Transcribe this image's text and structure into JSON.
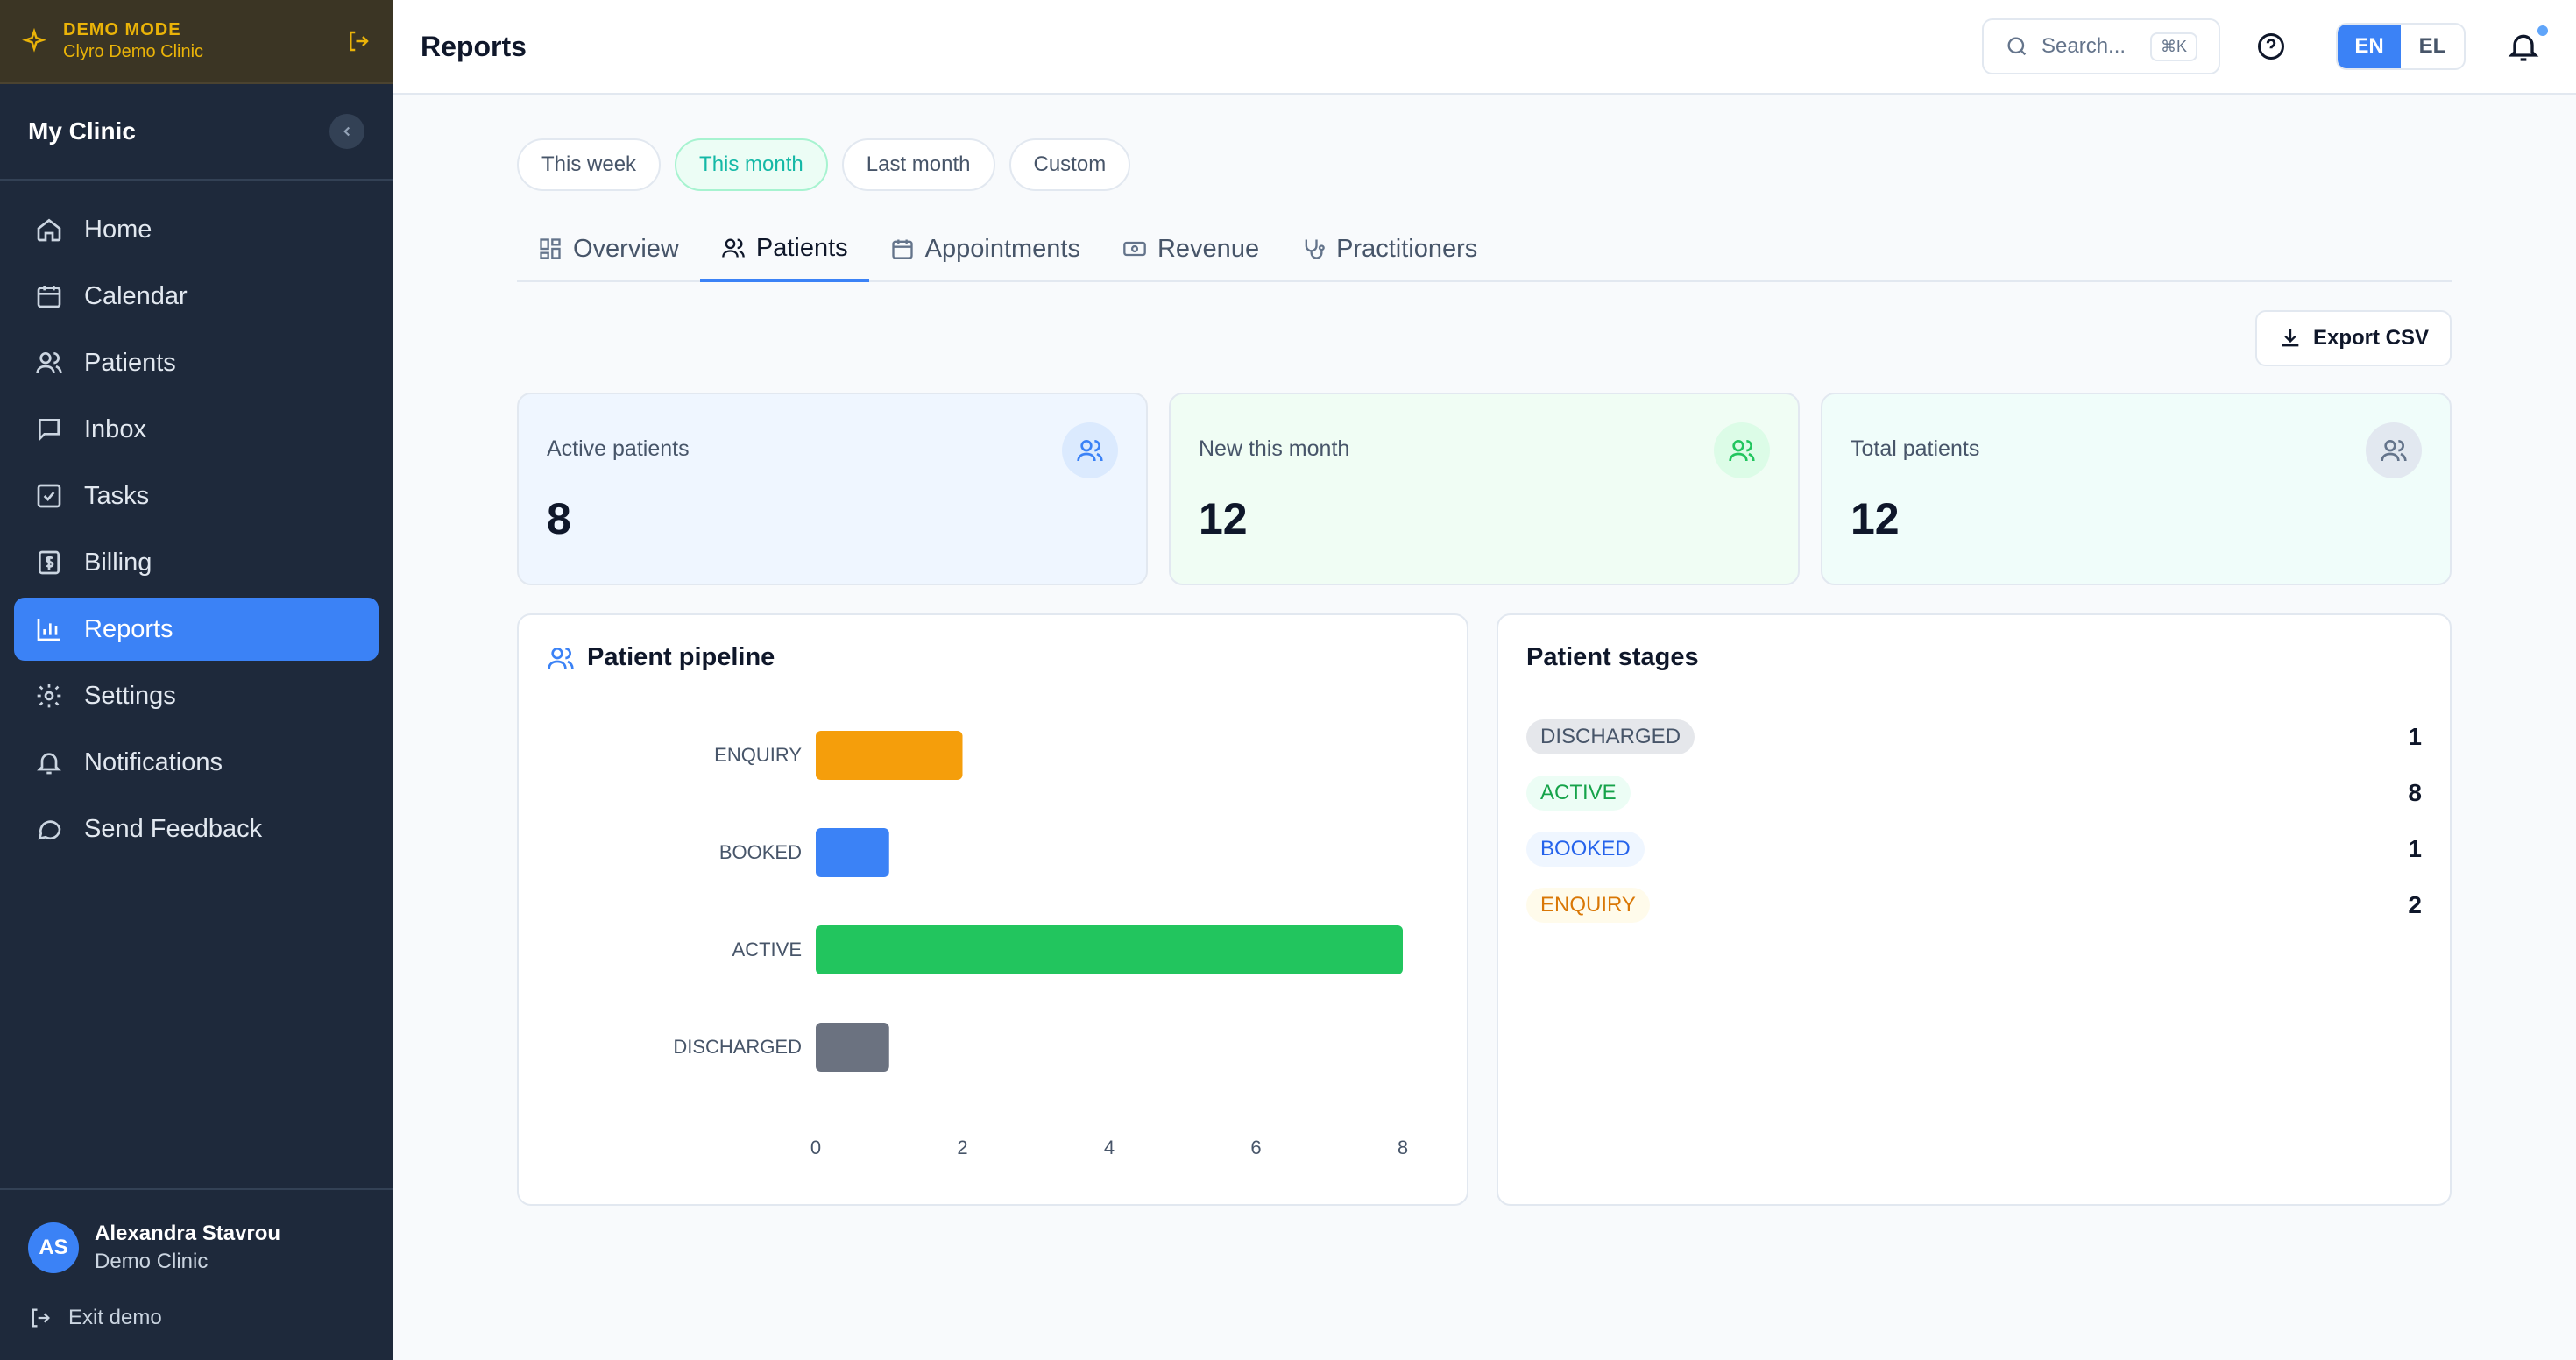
{
  "demo": {
    "mode_label": "DEMO MODE",
    "clinic": "Clyro Demo Clinic"
  },
  "sidebar": {
    "clinic_name": "My Clinic",
    "items": [
      {
        "label": "Home",
        "icon": "home-icon"
      },
      {
        "label": "Calendar",
        "icon": "calendar-icon"
      },
      {
        "label": "Patients",
        "icon": "users-icon"
      },
      {
        "label": "Inbox",
        "icon": "inbox-icon"
      },
      {
        "label": "Tasks",
        "icon": "check-square-icon"
      },
      {
        "label": "Billing",
        "icon": "billing-icon"
      },
      {
        "label": "Reports",
        "icon": "bar-chart-icon",
        "active": true
      },
      {
        "label": "Settings",
        "icon": "gear-icon"
      },
      {
        "label": "Notifications",
        "icon": "bell-icon"
      },
      {
        "label": "Send Feedback",
        "icon": "message-icon"
      }
    ],
    "user": {
      "initials": "AS",
      "name": "Alexandra Stavrou",
      "clinic": "Demo Clinic"
    },
    "exit_label": "Exit demo"
  },
  "header": {
    "title": "Reports",
    "search_placeholder": "Search...",
    "search_shortcut": "⌘K",
    "languages": [
      "EN",
      "EL"
    ],
    "active_language": "EN"
  },
  "ranges": [
    "This week",
    "This month",
    "Last month",
    "Custom"
  ],
  "active_range": "This month",
  "tabs": [
    "Overview",
    "Patients",
    "Appointments",
    "Revenue",
    "Practitioners"
  ],
  "active_tab": "Patients",
  "export_label": "Export CSV",
  "stats": [
    {
      "label": "Active patients",
      "value": "8"
    },
    {
      "label": "New this month",
      "value": "12"
    },
    {
      "label": "Total patients",
      "value": "12"
    }
  ],
  "pipeline": {
    "title": "Patient pipeline"
  },
  "stages": {
    "title": "Patient stages",
    "rows": [
      {
        "label": "DISCHARGED",
        "count": "1"
      },
      {
        "label": "ACTIVE",
        "count": "8"
      },
      {
        "label": "BOOKED",
        "count": "1"
      },
      {
        "label": "ENQUIRY",
        "count": "2"
      }
    ]
  },
  "colors": {
    "accent": "#3b82f6",
    "enquiry": "#f59e0b",
    "booked": "#3b82f6",
    "active": "#22c55e",
    "discharged": "#6b7280"
  },
  "chart_data": {
    "type": "bar",
    "orientation": "horizontal",
    "categories": [
      "ENQUIRY",
      "BOOKED",
      "ACTIVE",
      "DISCHARGED"
    ],
    "values": [
      2,
      1,
      8,
      1
    ],
    "xlim": [
      0,
      8
    ],
    "xticks": [
      0,
      2,
      4,
      6,
      8
    ],
    "colors": [
      "#f59e0b",
      "#3b82f6",
      "#22c55e",
      "#6b7280"
    ],
    "title": "Patient pipeline"
  }
}
